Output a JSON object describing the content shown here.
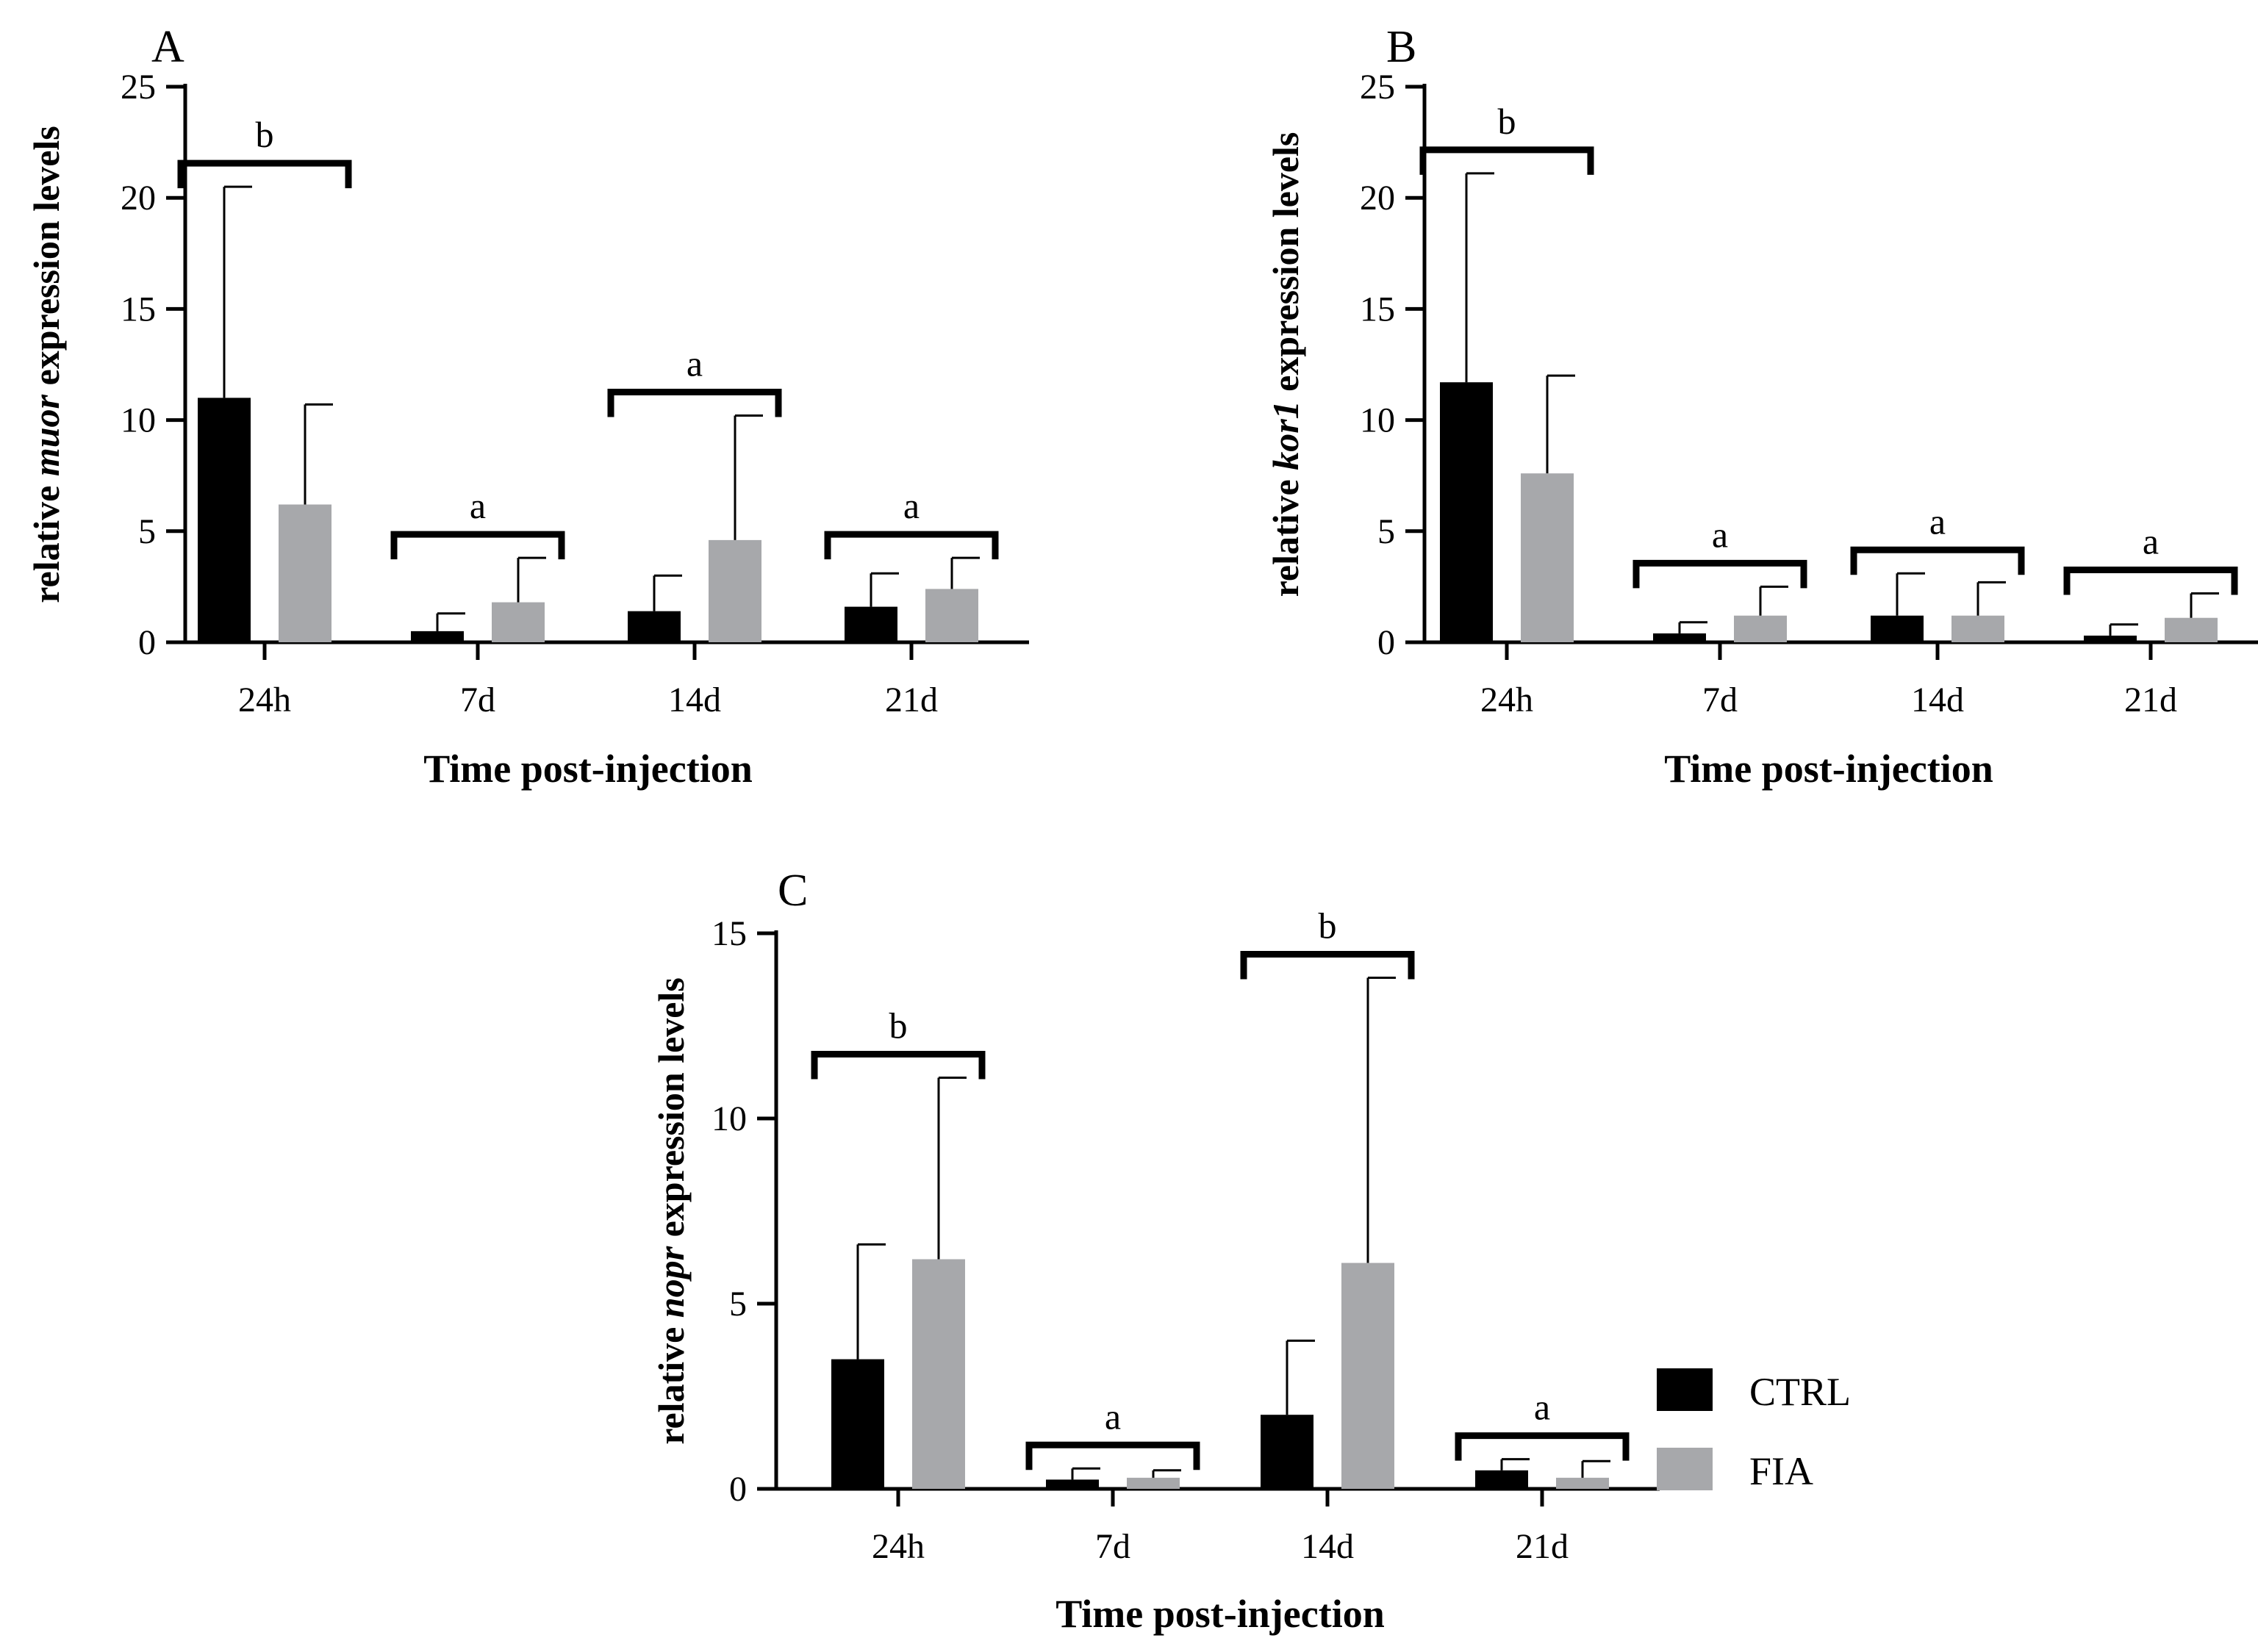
{
  "legend": {
    "entries": [
      {
        "label": "CTRL",
        "color": "#000000"
      },
      {
        "label": "FIA",
        "color": "#a7a8ab"
      }
    ]
  },
  "chart_data": [
    {
      "panel": "A",
      "type": "bar",
      "categories": [
        "24h",
        "7d",
        "14d",
        "21d"
      ],
      "series": [
        {
          "name": "CTRL",
          "values": [
            11.0,
            0.5,
            1.4,
            1.6
          ],
          "errors": [
            9.5,
            0.8,
            1.6,
            1.5
          ]
        },
        {
          "name": "FIA",
          "values": [
            6.2,
            1.8,
            4.6,
            2.4
          ],
          "errors": [
            4.5,
            2.0,
            5.6,
            1.4
          ]
        }
      ],
      "significance": [
        "b",
        "a",
        "a",
        "a"
      ],
      "xlabel": "Time post-injection",
      "ylabel_prefix": "relative ",
      "ylabel_gene": "muor",
      "ylabel_suffix": " expression levels",
      "ylim": [
        0,
        25
      ],
      "yticks": [
        "0",
        "5",
        "10",
        "15",
        "20",
        "25"
      ],
      "grid": false
    },
    {
      "panel": "B",
      "type": "bar",
      "categories": [
        "24h",
        "7d",
        "14d",
        "21d"
      ],
      "series": [
        {
          "name": "CTRL",
          "values": [
            11.7,
            0.4,
            1.2,
            0.3
          ],
          "errors": [
            9.4,
            0.5,
            1.9,
            0.5
          ]
        },
        {
          "name": "FIA",
          "values": [
            7.6,
            1.2,
            1.2,
            1.1
          ],
          "errors": [
            4.4,
            1.3,
            1.5,
            1.1
          ]
        }
      ],
      "significance": [
        "b",
        "a",
        "a",
        "a"
      ],
      "xlabel": "Time post-injection",
      "ylabel_prefix": "relative ",
      "ylabel_gene": "kor1",
      "ylabel_suffix": " expression levels",
      "ylim": [
        0,
        25
      ],
      "yticks": [
        "0",
        "5",
        "10",
        "15",
        "20",
        "25"
      ],
      "grid": false
    },
    {
      "panel": "C",
      "type": "bar",
      "categories": [
        "24h",
        "7d",
        "14d",
        "21d"
      ],
      "series": [
        {
          "name": "CTRL",
          "values": [
            3.5,
            0.25,
            2.0,
            0.5
          ],
          "errors": [
            3.1,
            0.3,
            2.0,
            0.3
          ]
        },
        {
          "name": "FIA",
          "values": [
            6.2,
            0.3,
            6.1,
            0.3
          ],
          "errors": [
            4.9,
            0.2,
            7.7,
            0.45
          ]
        }
      ],
      "significance": [
        "b",
        "a",
        "b",
        "a"
      ],
      "xlabel": "Time post-injection",
      "ylabel_prefix": "relative ",
      "ylabel_gene": "nopr",
      "ylabel_suffix": " expression levels",
      "ylim": [
        0,
        15
      ],
      "yticks": [
        "0",
        "5",
        "10",
        "15"
      ],
      "grid": false
    }
  ]
}
